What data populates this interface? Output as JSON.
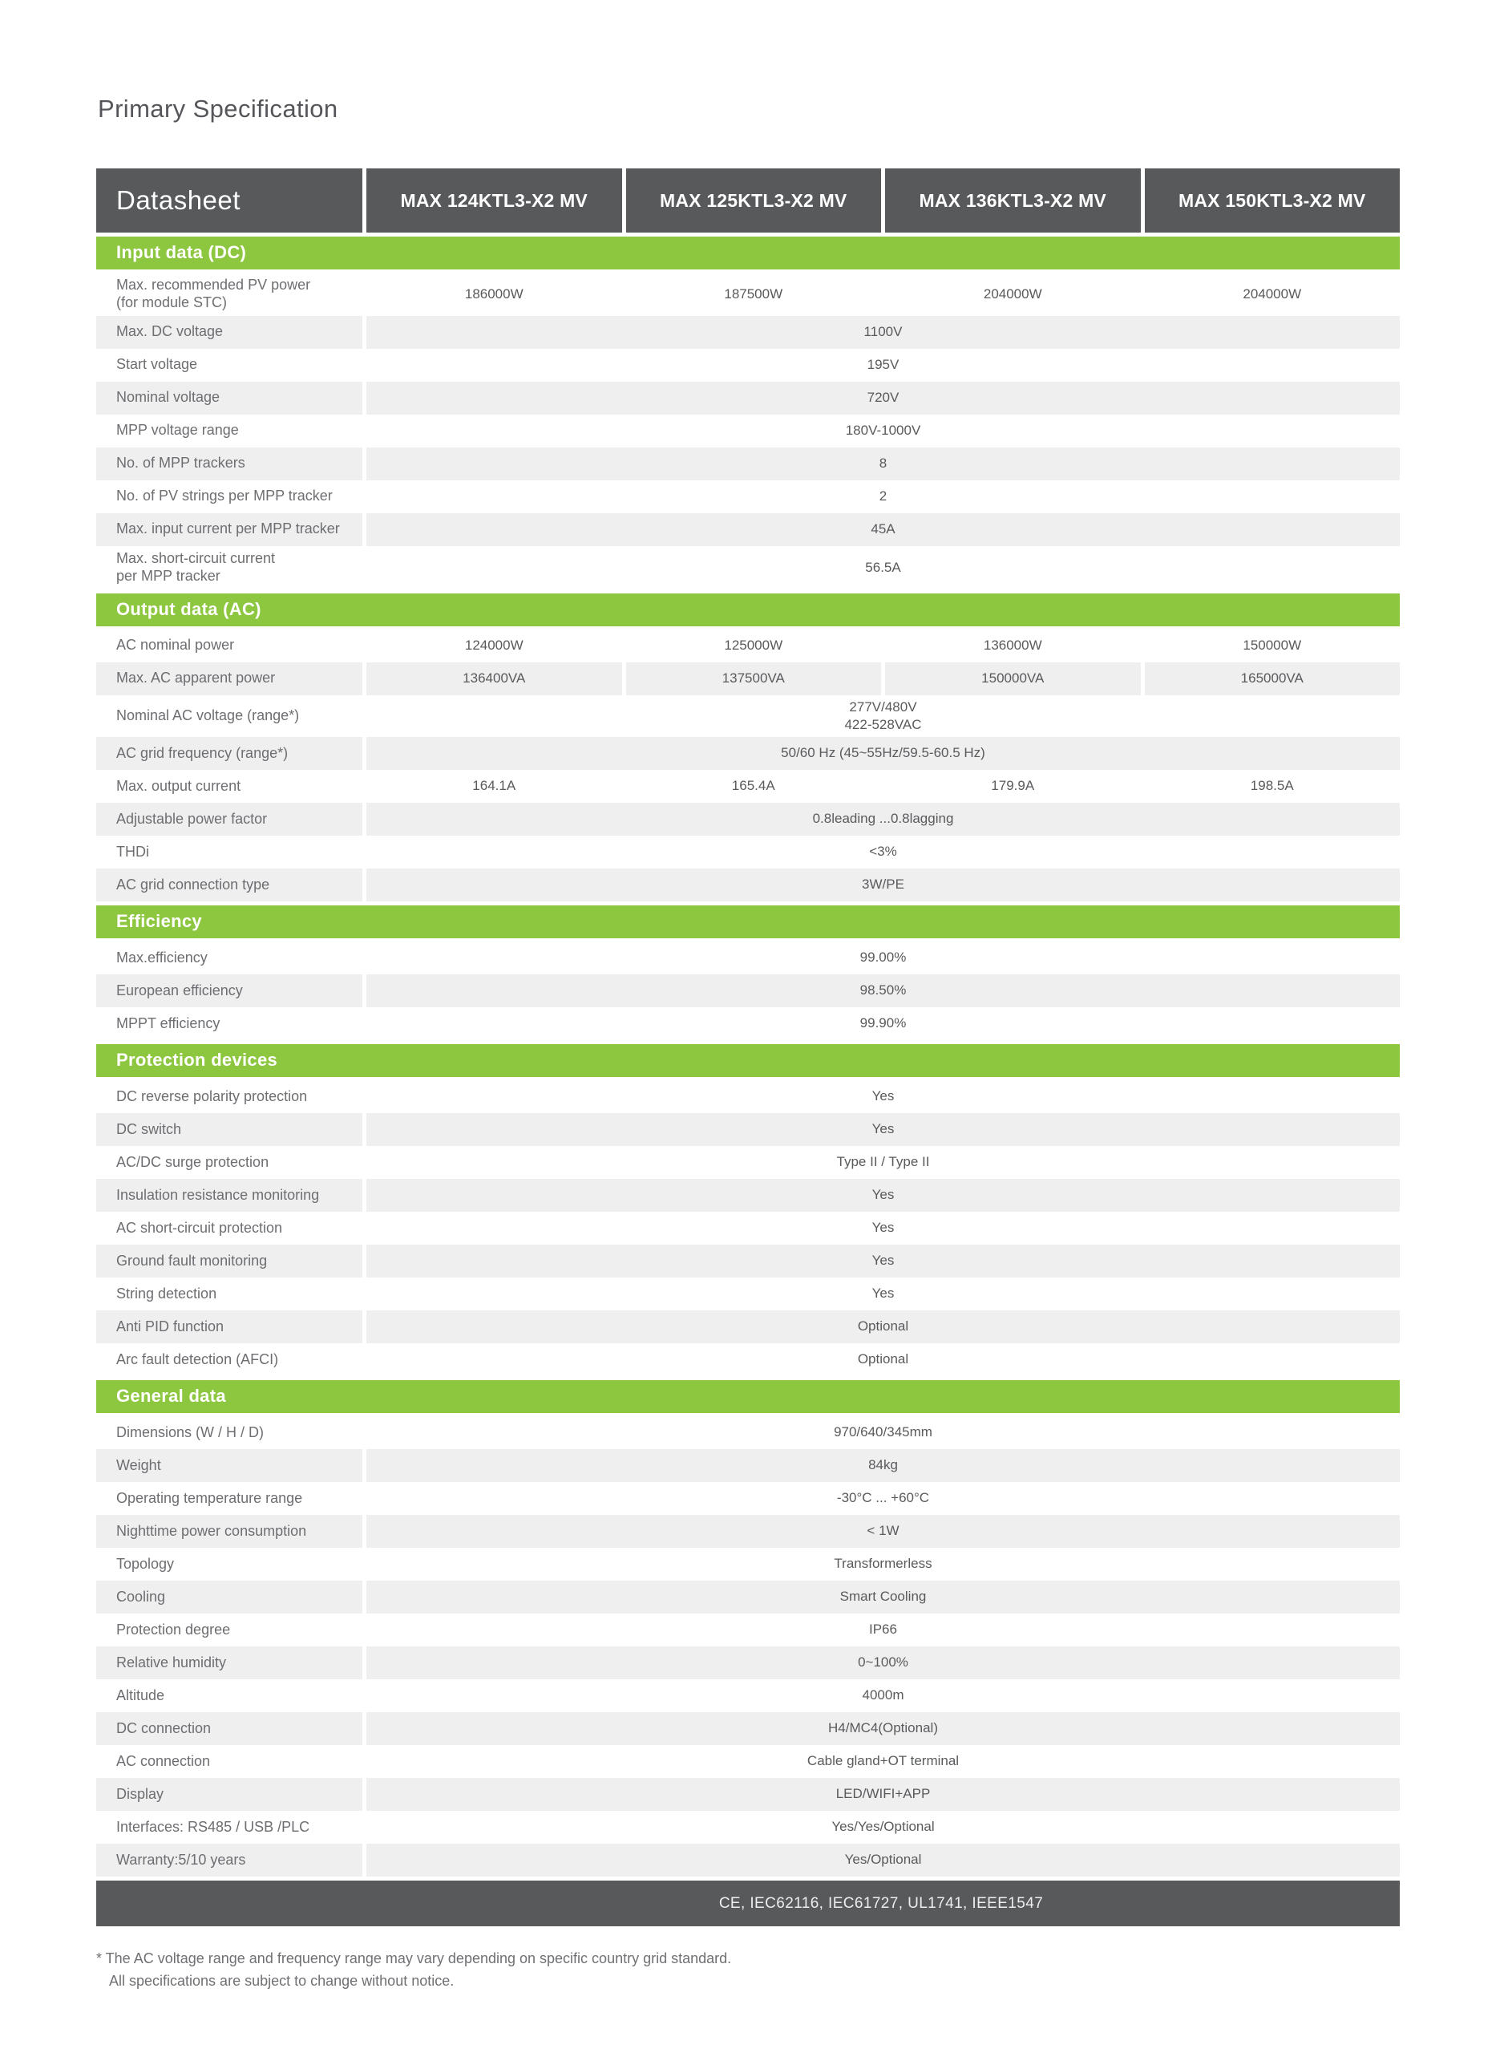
{
  "page": {
    "title": "Primary Specification"
  },
  "colors": {
    "accent_green": "#8dc63f",
    "header_gray": "#58595b",
    "stripe_gray": "#efeff0",
    "label_text": "#6d6e71",
    "value_text": "#595a5c"
  },
  "table": {
    "header": {
      "label": "Datasheet",
      "models": [
        "MAX 124KTL3-X2 MV",
        "MAX 125KTL3-X2 MV",
        "MAX 136KTL3-X2 MV",
        "MAX 150KTL3-X2 MV"
      ]
    },
    "sections": [
      {
        "title": "Input data (DC)",
        "rows": [
          {
            "label": "Max. recommended PV power\n(for module STC)",
            "values": [
              "186000W",
              "187500W",
              "204000W",
              "204000W"
            ]
          },
          {
            "label": "Max. DC voltage",
            "span": "1100V"
          },
          {
            "label": "Start voltage",
            "span": "195V"
          },
          {
            "label": "Nominal voltage",
            "span": "720V"
          },
          {
            "label": "MPP voltage range",
            "span": "180V-1000V"
          },
          {
            "label": "No. of MPP trackers",
            "span": "8"
          },
          {
            "label": "No. of PV strings per MPP tracker",
            "span": "2"
          },
          {
            "label": "Max. input current per MPP tracker",
            "span": "45A"
          },
          {
            "label": "Max. short-circuit current\nper MPP tracker",
            "span": "56.5A"
          }
        ]
      },
      {
        "title": "Output data (AC)",
        "rows": [
          {
            "label": "AC nominal power",
            "values": [
              "124000W",
              "125000W",
              "136000W",
              "150000W"
            ]
          },
          {
            "label": "Max. AC apparent power",
            "values": [
              "136400VA",
              "137500VA",
              "150000VA",
              "165000VA"
            ]
          },
          {
            "label": "Nominal AC voltage (range*)",
            "span": "277V/480V\n422-528VAC"
          },
          {
            "label": "AC grid frequency (range*)",
            "span": "50/60 Hz (45~55Hz/59.5-60.5 Hz)"
          },
          {
            "label": "Max. output current",
            "values": [
              "164.1A",
              "165.4A",
              "179.9A",
              "198.5A"
            ]
          },
          {
            "label": "Adjustable power factor",
            "span": "0.8leading ...0.8lagging"
          },
          {
            "label": "THDi",
            "span": "<3%"
          },
          {
            "label": "AC grid connection type",
            "span": "3W/PE"
          }
        ]
      },
      {
        "title": "Efficiency",
        "rows": [
          {
            "label": "Max.efficiency",
            "span": "99.00%"
          },
          {
            "label": "European efficiency",
            "span": "98.50%"
          },
          {
            "label": "MPPT efficiency",
            "span": "99.90%"
          }
        ]
      },
      {
        "title": "Protection devices",
        "rows": [
          {
            "label": "DC reverse polarity protection",
            "span": "Yes"
          },
          {
            "label": "DC switch",
            "span": "Yes"
          },
          {
            "label": "AC/DC surge protection",
            "span": "Type II / Type II"
          },
          {
            "label": "Insulation resistance monitoring",
            "span": "Yes"
          },
          {
            "label": "AC short-circuit protection",
            "span": "Yes"
          },
          {
            "label": "Ground fault monitoring",
            "span": "Yes"
          },
          {
            "label": "String detection",
            "span": "Yes"
          },
          {
            "label": "Anti PID function",
            "span": "Optional"
          },
          {
            "label": "Arc fault detection (AFCI)",
            "span": "Optional"
          }
        ]
      },
      {
        "title": "General data",
        "rows": [
          {
            "label": "Dimensions (W / H / D)",
            "span": "970/640/345mm"
          },
          {
            "label": "Weight",
            "span": "84kg"
          },
          {
            "label": "Operating temperature range",
            "span": "-30°C ... +60°C"
          },
          {
            "label": "Nighttime power consumption",
            "span": "< 1W"
          },
          {
            "label": "Topology",
            "span": "Transformerless"
          },
          {
            "label": "Cooling",
            "span": "Smart Cooling"
          },
          {
            "label": "Protection degree",
            "span": "IP66"
          },
          {
            "label": "Relative humidity",
            "span": "0~100%"
          },
          {
            "label": "Altitude",
            "span": "4000m"
          },
          {
            "label": "DC connection",
            "span": "H4/MC4(Optional)"
          },
          {
            "label": "AC connection",
            "span": "Cable gland+OT terminal"
          },
          {
            "label": "Display",
            "span": "LED/WIFI+APP"
          },
          {
            "label": "Interfaces: RS485 / USB /PLC",
            "span": "Yes/Yes/Optional"
          },
          {
            "label": "Warranty:5/10 years",
            "span": "Yes/Optional"
          }
        ]
      }
    ],
    "certifications": "CE, IEC62116, IEC61727, UL1741, IEEE1547"
  },
  "footnotes": [
    "* The AC voltage range and frequency range may vary depending on specific country grid standard.",
    "All specifications are subject to change without notice."
  ]
}
